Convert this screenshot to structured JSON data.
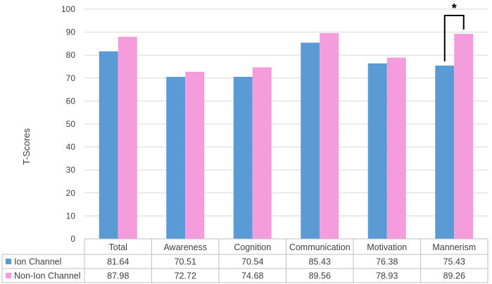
{
  "chart_data": {
    "type": "bar",
    "ylabel": "T-Scores",
    "ylim": [
      0,
      100
    ],
    "yticks": [
      0,
      10,
      20,
      30,
      40,
      50,
      60,
      70,
      80,
      90,
      100
    ],
    "grid": true,
    "categories": [
      "Total",
      "Awareness",
      "Cognition",
      "Communication",
      "Motivation",
      "Mannerism"
    ],
    "series": [
      {
        "name": "Ion Channel",
        "color": "#5b9bd5",
        "values": [
          81.64,
          70.51,
          70.54,
          85.43,
          76.38,
          75.43
        ]
      },
      {
        "name": "Non-Ion Channel",
        "color": "#f49cdc",
        "values": [
          87.98,
          72.72,
          74.68,
          89.56,
          78.93,
          89.26
        ]
      }
    ],
    "data_table": true,
    "annotations": [
      {
        "text": "*",
        "category": "Mannerism",
        "type": "significance-bracket"
      }
    ]
  }
}
